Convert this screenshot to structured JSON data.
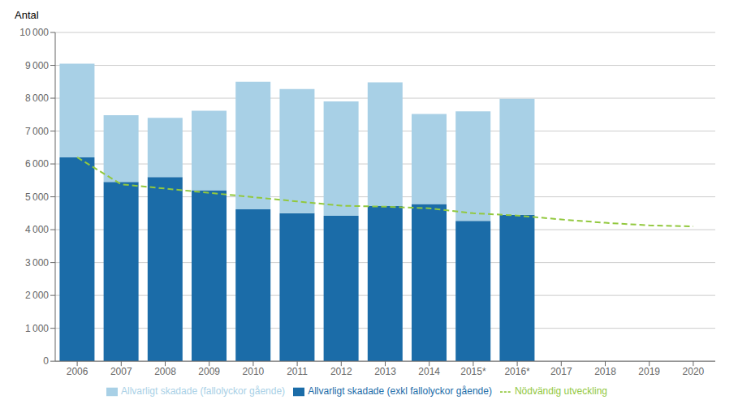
{
  "chart_data": {
    "type": "bar",
    "y_label": "Antal",
    "categories": [
      "2006",
      "2007",
      "2008",
      "2009",
      "2010",
      "2011",
      "2012",
      "2013",
      "2014",
      "2015*",
      "2016*",
      "2017",
      "2018",
      "2019",
      "2020"
    ],
    "series": [
      {
        "name": "Allvarligt skadade (exkl fallolyckor gående)",
        "type": "bar",
        "color": "#1b6ca8",
        "values": [
          6200,
          5450,
          5600,
          5200,
          4620,
          4500,
          4420,
          4720,
          4780,
          4270,
          4450,
          null,
          null,
          null,
          null
        ]
      },
      {
        "name": "Allvarligt skadade  (fallolyckor gående)",
        "type": "bar",
        "color": "#a8d0e6",
        "values": [
          2850,
          2030,
          1800,
          2420,
          3880,
          3780,
          3480,
          3760,
          2740,
          3330,
          3530,
          null,
          null,
          null,
          null
        ]
      },
      {
        "name": "Nödvändig utveckling",
        "type": "line",
        "color": "#92c83e",
        "line_style": "dashed",
        "values": [
          6200,
          5380,
          5250,
          5120,
          4990,
          4860,
          4730,
          4700,
          4650,
          4500,
          4430,
          4310,
          4210,
          4130,
          4100
        ]
      }
    ],
    "stacked": true,
    "ylim": [
      0,
      10000
    ],
    "yticks": [
      0,
      {
        "value": 1000,
        "label": "1 000"
      },
      {
        "value": 2000,
        "label": "2 000"
      },
      {
        "value": 3000,
        "label": "3 000"
      },
      {
        "value": 4000,
        "label": "4 000"
      },
      {
        "value": 5000,
        "label": "5 000"
      },
      {
        "value": 6000,
        "label": "6 000"
      },
      {
        "value": 7000,
        "label": "7 000"
      },
      {
        "value": 8000,
        "label": "8 000"
      },
      {
        "value": 9000,
        "label": "9 000"
      },
      {
        "value": 10000,
        "label": "10 000"
      }
    ],
    "grid": true,
    "legend": "bottom"
  }
}
